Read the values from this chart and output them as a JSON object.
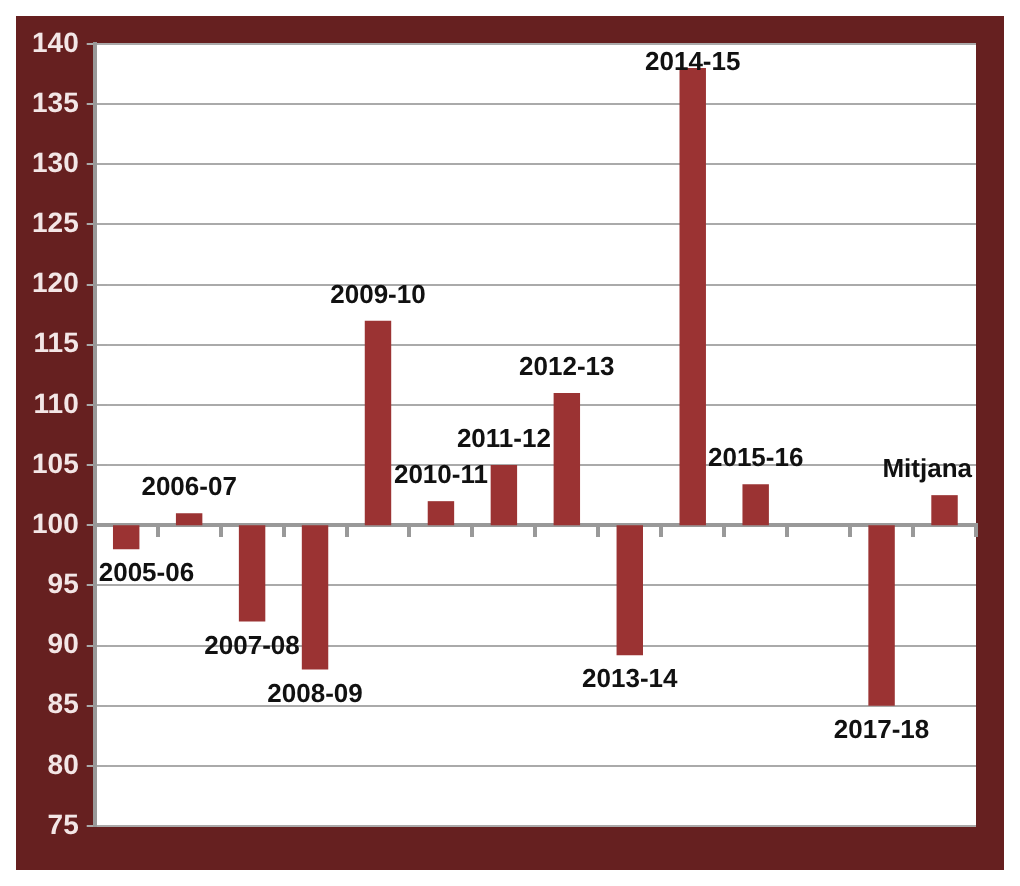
{
  "chart_data": {
    "type": "bar",
    "categories": [
      "2005-06",
      "2006-07",
      "2007-08",
      "2008-09",
      "2009-10",
      "2010-11",
      "2011-12",
      "2012-13",
      "2013-14",
      "2014-15",
      "2015-16",
      null,
      "2017-18",
      "Mitjana"
    ],
    "base": [
      100,
      100,
      100,
      100,
      100,
      100,
      100,
      100,
      100,
      100,
      100,
      null,
      100,
      100
    ],
    "values": [
      -2,
      1,
      -8,
      -12,
      17,
      2,
      5,
      11,
      -10.8,
      38,
      3.4,
      null,
      -15,
      2.5
    ],
    "color": "#9b3333",
    "ylim": [
      75,
      140
    ],
    "yticks": [
      75,
      80,
      85,
      90,
      95,
      100,
      105,
      110,
      115,
      120,
      125,
      130,
      135,
      140
    ],
    "grid": "y"
  }
}
